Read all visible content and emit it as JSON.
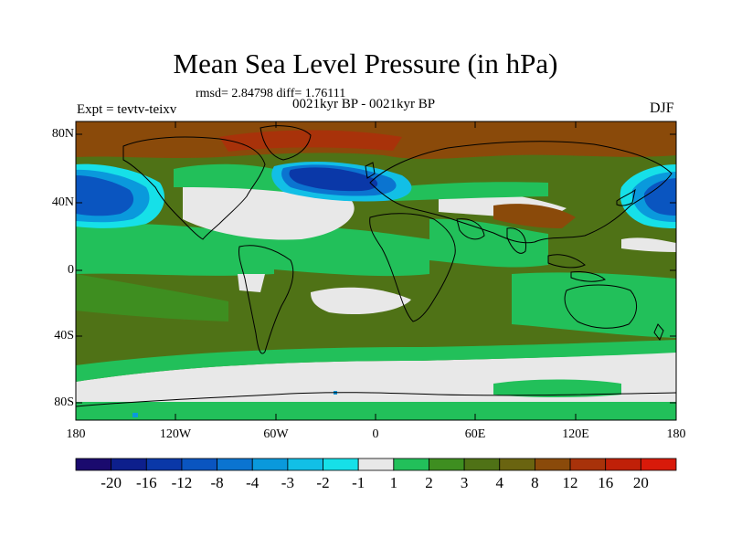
{
  "title": "Mean Sea Level Pressure (in hPa)",
  "stats": "rmsd= 2.84798 diff= 1.76111",
  "subtitle": "0021kyr BP - 0021kyr BP",
  "experiment": "Expt = tevtv-teixv",
  "season": "DJF",
  "lat_labels": [
    "80N",
    "40N",
    "0",
    "40S",
    "80S"
  ],
  "lon_labels": [
    "180",
    "120W",
    "60W",
    "0",
    "60E",
    "120E",
    "180"
  ],
  "colorbar": {
    "labels": [
      "-20",
      "-16",
      "-12",
      "-8",
      "-4",
      "-3",
      "-2",
      "-1",
      "1",
      "2",
      "3",
      "4",
      "8",
      "12",
      "16",
      "20"
    ],
    "colors": [
      "#1a0a6e",
      "#0d1f8c",
      "#0a38a8",
      "#0a55c0",
      "#0b74d0",
      "#0a99dc",
      "#12bfe6",
      "#16e0e8",
      "#e8e8e8",
      "#22c05a",
      "#3e8e20",
      "#4f7216",
      "#6a6410",
      "#8a4a0a",
      "#a8320a",
      "#c02008",
      "#d81a0a"
    ]
  }
}
